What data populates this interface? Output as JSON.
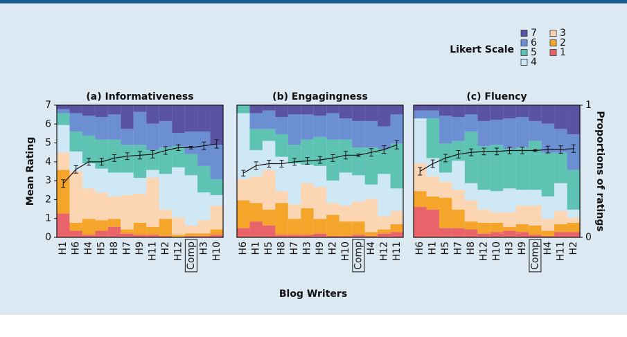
{
  "chart_data": [
    {
      "type": "bar",
      "stacked": true,
      "title": "(a) Informativeness",
      "ylabel": "Mean Rating",
      "legend_title": "Likert Scale",
      "highlight": "Comp",
      "categories": [
        "H1",
        "H6",
        "H4",
        "H5",
        "H8",
        "H7",
        "H9",
        "H11",
        "H2",
        "H12",
        "Comp",
        "H3",
        "H10"
      ],
      "ylim": [
        0,
        7
      ],
      "yticks": [
        0,
        1,
        2,
        3,
        4,
        5,
        6,
        7
      ],
      "y2lim": [
        0,
        1
      ],
      "series": [
        {
          "name": "1",
          "color": "#e8646a",
          "axis": "y2",
          "values": [
            0.18,
            0.05,
            0.02,
            0.05,
            0.08,
            0.03,
            0.02,
            0.02,
            0.01,
            0,
            0.01,
            0.01,
            0.02
          ]
        },
        {
          "name": "2",
          "color": "#f4a52a",
          "axis": "y2",
          "values": [
            0.33,
            0.06,
            0.12,
            0.08,
            0.06,
            0.03,
            0.09,
            0.06,
            0.13,
            0.02,
            0.02,
            0.02,
            0.04
          ]
        },
        {
          "name": "3",
          "color": "#fcd6b2",
          "axis": "y2",
          "values": [
            0.13,
            0.39,
            0.23,
            0.21,
            0.17,
            0.26,
            0.22,
            0.37,
            0.07,
            0.13,
            0.06,
            0.1,
            0.18
          ]
        },
        {
          "name": "4",
          "color": "#cfe8f5",
          "axis": "y2",
          "values": [
            0.21,
            0.15,
            0.19,
            0.18,
            0.18,
            0.17,
            0.12,
            0.06,
            0.27,
            0.38,
            0.38,
            0.21,
            0.08
          ]
        },
        {
          "name": "5",
          "color": "#5fc3b3",
          "axis": "y2",
          "values": [
            0.09,
            0.15,
            0.21,
            0.22,
            0.25,
            0.21,
            0.25,
            0.15,
            0.2,
            0.16,
            0.16,
            0.2,
            0.12
          ]
        },
        {
          "name": "6",
          "color": "#6b8fd2",
          "axis": "y2",
          "values": [
            0.03,
            0.14,
            0.15,
            0.17,
            0.19,
            0.12,
            0.25,
            0.2,
            0.2,
            0.1,
            0.17,
            0.26,
            0.26
          ]
        },
        {
          "name": "7",
          "color": "#5a53a3",
          "axis": "y2",
          "values": [
            0.03,
            0.06,
            0.08,
            0.09,
            0.07,
            0.18,
            0.05,
            0.14,
            0.12,
            0.21,
            0.2,
            0.2,
            0.3
          ]
        }
      ],
      "mean_values": [
        2.85,
        3.6,
        4.0,
        4.0,
        4.2,
        4.3,
        4.35,
        4.4,
        4.6,
        4.75,
        4.75,
        4.85,
        4.95
      ],
      "mean_errors": [
        0.2,
        0.2,
        0.18,
        0.18,
        0.18,
        0.18,
        0.2,
        0.2,
        0.2,
        0.15,
        0.07,
        0.2,
        0.22
      ]
    },
    {
      "type": "bar",
      "stacked": true,
      "title": "(b) Engagingness",
      "xlabel": "Blog Writers",
      "highlight": "Comp",
      "categories": [
        "H6",
        "H1",
        "H5",
        "H8",
        "H7",
        "H3",
        "H9",
        "H2",
        "H10",
        "Comp",
        "H4",
        "H12",
        "H11"
      ],
      "ylim": [
        0,
        7
      ],
      "y2lim": [
        0,
        1
      ],
      "series": [
        {
          "name": "1",
          "color": "#e8646a",
          "axis": "y2",
          "values": [
            0.07,
            0.12,
            0.09,
            0.02,
            0.02,
            0.02,
            0.03,
            0.01,
            0.01,
            0.02,
            0.01,
            0.03,
            0.04
          ]
        },
        {
          "name": "2",
          "color": "#f4a52a",
          "axis": "y2",
          "values": [
            0.21,
            0.14,
            0.12,
            0.24,
            0.12,
            0.2,
            0.11,
            0.16,
            0.11,
            0.1,
            0.03,
            0.03,
            0.06
          ]
        },
        {
          "name": "3",
          "color": "#fcd6b2",
          "axis": "y2",
          "values": [
            0.16,
            0.2,
            0.3,
            0.09,
            0.11,
            0.19,
            0.24,
            0.09,
            0.12,
            0.15,
            0.25,
            0.1,
            0.1
          ]
        },
        {
          "name": "4",
          "color": "#cfe8f5",
          "axis": "y2",
          "values": [
            0.5,
            0.2,
            0.22,
            0.26,
            0.31,
            0.14,
            0.16,
            0.17,
            0.25,
            0.2,
            0.11,
            0.32,
            0.17
          ]
        },
        {
          "name": "5",
          "color": "#5fc3b3",
          "axis": "y2",
          "values": [
            0.06,
            0.16,
            0.09,
            0.17,
            0.14,
            0.19,
            0.22,
            0.31,
            0.25,
            0.21,
            0.28,
            0.19,
            0.34
          ]
        },
        {
          "name": "6",
          "color": "#6b8fd2",
          "axis": "y2",
          "values": [
            0,
            0.12,
            0.14,
            0.13,
            0.23,
            0.19,
            0.16,
            0.2,
            0.16,
            0.2,
            0.2,
            0.17,
            0.22
          ]
        },
        {
          "name": "7",
          "color": "#5a53a3",
          "axis": "y2",
          "values": [
            0,
            0.06,
            0.04,
            0.09,
            0.07,
            0.07,
            0.08,
            0.06,
            0.1,
            0.12,
            0.12,
            0.16,
            0.07
          ]
        }
      ],
      "mean_values": [
        3.4,
        3.8,
        3.9,
        3.9,
        4.0,
        4.05,
        4.1,
        4.2,
        4.35,
        4.35,
        4.5,
        4.65,
        4.9
      ],
      "mean_errors": [
        0.15,
        0.2,
        0.18,
        0.18,
        0.18,
        0.18,
        0.18,
        0.18,
        0.2,
        0.06,
        0.2,
        0.2,
        0.22
      ]
    },
    {
      "type": "bar",
      "stacked": true,
      "title": "(c) Fluency",
      "y2label": "Proportions of ratings",
      "highlight": "Comp",
      "categories": [
        "H6",
        "H1",
        "H5",
        "H7",
        "H8",
        "H12",
        "H10",
        "H3",
        "H9",
        "Comp",
        "H4",
        "H11",
        "H2"
      ],
      "ylim": [
        0,
        7
      ],
      "y2lim": [
        0,
        1
      ],
      "y2ticks": [
        0,
        1
      ],
      "series": [
        {
          "name": "1",
          "color": "#e8646a",
          "axis": "y2",
          "values": [
            0.23,
            0.21,
            0.07,
            0.07,
            0.06,
            0.03,
            0.04,
            0.05,
            0.04,
            0.02,
            0.01,
            0.04,
            0.04
          ]
        },
        {
          "name": "2",
          "color": "#f4a52a",
          "axis": "y2",
          "values": [
            0.12,
            0.1,
            0.23,
            0.14,
            0.06,
            0.08,
            0.07,
            0.03,
            0.06,
            0.07,
            0.04,
            0.06,
            0.07
          ]
        },
        {
          "name": "3",
          "color": "#fcd6b2",
          "axis": "y2",
          "values": [
            0.21,
            0.15,
            0.12,
            0.15,
            0.16,
            0.1,
            0.08,
            0.11,
            0.14,
            0.15,
            0.09,
            0.1,
            0.04
          ]
        },
        {
          "name": "4",
          "color": "#cfe8f5",
          "axis": "y2",
          "values": [
            0.34,
            0.14,
            0.07,
            0.22,
            0.13,
            0.15,
            0.16,
            0.18,
            0.12,
            0.12,
            0.17,
            0.21,
            0.06
          ]
        },
        {
          "name": "5",
          "color": "#5fc3b3",
          "axis": "y2",
          "values": [
            0,
            0.3,
            0.22,
            0.15,
            0.39,
            0.33,
            0.35,
            0.3,
            0.32,
            0.37,
            0.33,
            0.23,
            0.3
          ]
        },
        {
          "name": "6",
          "color": "#6b8fd2",
          "axis": "y2",
          "values": [
            0.06,
            0.06,
            0.21,
            0.18,
            0.13,
            0.19,
            0.19,
            0.23,
            0.23,
            0.15,
            0.22,
            0.18,
            0.27
          ]
        },
        {
          "name": "7",
          "color": "#5a53a3",
          "axis": "y2",
          "values": [
            0.04,
            0.04,
            0.08,
            0.09,
            0.07,
            0.12,
            0.11,
            0.1,
            0.09,
            0.12,
            0.14,
            0.18,
            0.22
          ]
        }
      ],
      "mean_values": [
        3.5,
        3.9,
        4.2,
        4.4,
        4.5,
        4.55,
        4.55,
        4.6,
        4.6,
        4.6,
        4.65,
        4.65,
        4.7
      ],
      "mean_errors": [
        0.2,
        0.2,
        0.2,
        0.2,
        0.18,
        0.18,
        0.18,
        0.18,
        0.18,
        0.06,
        0.18,
        0.2,
        0.2
      ]
    }
  ]
}
